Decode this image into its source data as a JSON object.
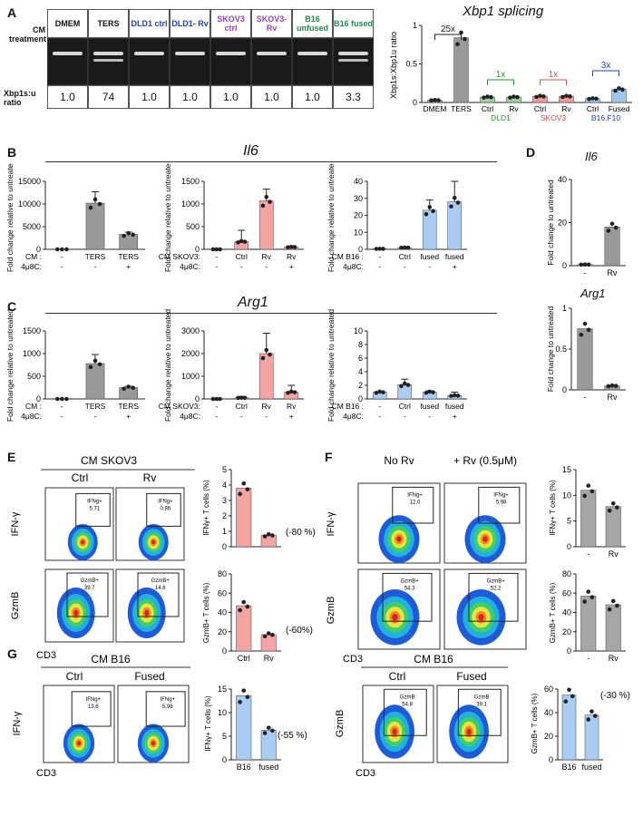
{
  "panelA": {
    "label": "A",
    "cm_label": "CM treatment",
    "ratio_label": "Xbp1s:u ratio",
    "lanes": [
      {
        "name": "DMEM",
        "color": "#111111",
        "ratio": "1.0"
      },
      {
        "name": "TERS",
        "color": "#111111",
        "ratio": "74"
      },
      {
        "name": "DLD1 ctrl",
        "color": "#1f3fbf",
        "ratio": "1.0"
      },
      {
        "name": "DLD1- Rv",
        "color": "#1f3fbf",
        "ratio": "1.0"
      },
      {
        "name": "SKOV3 ctrl",
        "color": "#9b3fbf",
        "ratio": "1.0"
      },
      {
        "name": "SKOV3- Rv",
        "color": "#9b3fbf",
        "ratio": "1.0"
      },
      {
        "name": "B16 unfused",
        "color": "#1a8f4a",
        "ratio": "1.0"
      },
      {
        "name": "B16 fused",
        "color": "#1a8f4a",
        "ratio": "3.3"
      }
    ],
    "chart_title": "Xbp1 splicing",
    "ylabel": "Xbp1s:Xbp1u ratio",
    "fold_labels": [
      "25x",
      "1x",
      "1x",
      "3x"
    ],
    "group_labels": [
      "DLD1",
      "SKOV3",
      "B16.F10"
    ]
  },
  "panelB": {
    "label": "B",
    "gene": "Il6"
  },
  "panelC": {
    "label": "C",
    "gene": "Arg1"
  },
  "panelD": {
    "label": "D",
    "gene1": "Il6",
    "gene2": "Arg1",
    "ylabel": "Fold change to untreated"
  },
  "panelE": {
    "label": "E",
    "title": "CM SKOV3",
    "col1": "Ctrl",
    "col2": "Rv",
    "gates": [
      "IFNg+ 5.71",
      "IFNg+ 0.86",
      "GzmB+ 39.7",
      "GzmB+ 14.6"
    ],
    "pct1": "(-80 %)",
    "pct2": "(-60%)",
    "ylab1": "IFNγ+ T cells (%)",
    "ylab2": "GzmB+ T cells (%)"
  },
  "panelF": {
    "label": "F",
    "col1": "No Rv",
    "col2": "+ Rv (0.5μM)",
    "gates": [
      "IFNg+ 12.0",
      "IFNg+ 5.98",
      "GzmB+ 54.3",
      "GzmB+ 52.2"
    ],
    "ylab1": "IFNγ+ T cells (%)",
    "ylab2": "GzmB+ T cells (%)"
  },
  "panelG": {
    "label": "G",
    "title": "CM B16",
    "col1": "Ctrl",
    "col2": "Fused",
    "gates": [
      "IFNg+ 13.6",
      "IFNg+ 5.98",
      "GzmB 54.8",
      "GzmB 39.1"
    ],
    "pct1": "(-55 %)",
    "pct2": "(-30 %)",
    "ylab1": "IFNγ+ T cells (%)",
    "ylab2": "GzmB+ T cells (%)"
  },
  "axes": {
    "ifng": "IFN-γ",
    "gzmb": "GzmB",
    "cd3": "CD3",
    "fold": "Fold change relative to untreated"
  },
  "chart_data": [
    {
      "type": "bar",
      "id": "A",
      "title": "Xbp1 splicing",
      "ylabel": "Xbp1s:Xbp1u ratio",
      "categories": [
        "DMEM",
        "TERS",
        "Ctrl",
        "Rv",
        "Ctrl",
        "Rv",
        "Ctrl",
        "Fused"
      ],
      "values": [
        0.03,
        0.84,
        0.07,
        0.07,
        0.08,
        0.08,
        0.05,
        0.17
      ],
      "ylim": [
        0,
        1.0
      ],
      "yticks": [
        0.0,
        0.5,
        1.0
      ],
      "colors": [
        "#999999",
        "#999999",
        "#9ad49a",
        "#9ad49a",
        "#f29a9a",
        "#f29a9a",
        "#9ec6ee",
        "#9ec6ee"
      ]
    },
    {
      "type": "bar",
      "id": "B1",
      "categories": [
        "-",
        "TERS",
        "TERS"
      ],
      "values": [
        0,
        10200,
        3300
      ],
      "err": [
        0,
        2500,
        500
      ],
      "ylim": [
        0,
        15000
      ],
      "yticks": [
        0,
        5000,
        10000,
        15000
      ],
      "color": "#999999",
      "row_cm": [
        "-",
        "TERS",
        "TERS"
      ],
      "row_4u8c": [
        "-",
        "-",
        "+"
      ],
      "cm_label": "CM :"
    },
    {
      "type": "bar",
      "id": "B2",
      "categories": [
        "-",
        "Ctrl",
        "Rv",
        "Rv"
      ],
      "values": [
        0,
        170,
        1070,
        50
      ],
      "err": [
        0,
        250,
        260,
        20
      ],
      "ylim": [
        0,
        1500
      ],
      "yticks": [
        0,
        500,
        1000,
        1500
      ],
      "color": "#f4a3a3",
      "row_cm": [
        "-",
        "Ctrl",
        "Rv",
        "Rv"
      ],
      "row_4u8c": [
        "-",
        "-",
        "-",
        "+"
      ],
      "cm_label": "CM SKOV3:"
    },
    {
      "type": "bar",
      "id": "B3",
      "categories": [
        "-",
        "Ctrl",
        "fused",
        "fused"
      ],
      "values": [
        0.3,
        1,
        23,
        28
      ],
      "err": [
        0,
        0.5,
        6,
        12
      ],
      "ylim": [
        0,
        40
      ],
      "yticks": [
        0,
        10,
        20,
        30,
        40
      ],
      "color": "#a9cdf2",
      "row_cm": [
        "-",
        "Ctrl",
        "fused",
        "fused"
      ],
      "row_4u8c": [
        "-",
        "-",
        "-",
        "+"
      ],
      "cm_label": "CM B16 :"
    },
    {
      "type": "bar",
      "id": "C1",
      "categories": [
        "-",
        "TERS",
        "TERS"
      ],
      "values": [
        0,
        780,
        250
      ],
      "err": [
        0,
        200,
        30
      ],
      "ylim": [
        0,
        1500
      ],
      "yticks": [
        0,
        500,
        1000,
        1500
      ],
      "color": "#999999",
      "row_cm": [
        "-",
        "TERS",
        "TERS"
      ],
      "row_4u8c": [
        "-",
        "-",
        "+"
      ],
      "cm_label": "CM :"
    },
    {
      "type": "bar",
      "id": "C2",
      "categories": [
        "-",
        "Ctrl",
        "Rv",
        "Rv"
      ],
      "values": [
        0,
        50,
        2000,
        300
      ],
      "err": [
        0,
        60,
        900,
        300
      ],
      "ylim": [
        0,
        3000
      ],
      "yticks": [
        0,
        1000,
        2000,
        3000
      ],
      "color": "#f4a3a3",
      "row_cm": [
        "-",
        "Ctrl",
        "Rv",
        "Rv"
      ],
      "row_4u8c": [
        "-",
        "-",
        "-",
        "+"
      ],
      "cm_label": "CM SKOV3:"
    },
    {
      "type": "bar",
      "id": "C3",
      "categories": [
        "-",
        "Ctrl",
        "fused",
        "fused"
      ],
      "values": [
        1,
        2.1,
        1,
        0.5
      ],
      "err": [
        0,
        0.8,
        0.2,
        0.5
      ],
      "ylim": [
        0,
        10
      ],
      "yticks": [
        0,
        2,
        4,
        6,
        8,
        10
      ],
      "color": "#a9cdf2",
      "row_cm": [
        "-",
        "Ctrl",
        "fused",
        "fused"
      ],
      "row_4u8c": [
        "-",
        "-",
        "-",
        "+"
      ],
      "cm_label": "CM B16 :"
    },
    {
      "type": "bar",
      "id": "D1",
      "title": "Il6",
      "categories": [
        "-",
        "Rv"
      ],
      "values": [
        0.5,
        18
      ],
      "ylim": [
        0,
        40
      ],
      "color": "#999999"
    },
    {
      "type": "bar",
      "id": "D2",
      "title": "Arg1",
      "categories": [
        "-",
        "Rv"
      ],
      "values": [
        0.75,
        0.05
      ],
      "ylim": [
        0,
        1
      ],
      "color": "#999999"
    },
    {
      "type": "bar",
      "id": "E1",
      "categories": [
        "Ctrl",
        "Rv"
      ],
      "values": [
        3.8,
        0.75
      ],
      "ylim": [
        0,
        5
      ],
      "yticks": [
        0,
        1,
        2,
        3,
        4,
        5
      ],
      "color": "#f4a3a3"
    },
    {
      "type": "bar",
      "id": "E2",
      "categories": [
        "Ctrl",
        "Rv"
      ],
      "values": [
        47,
        17
      ],
      "ylim": [
        0,
        80
      ],
      "yticks": [
        0,
        20,
        40,
        60,
        80
      ],
      "color": "#f4a3a3"
    },
    {
      "type": "bar",
      "id": "F1",
      "categories": [
        "-",
        "Rv"
      ],
      "values": [
        11,
        7.8
      ],
      "ylim": [
        0,
        15
      ],
      "yticks": [
        0,
        5,
        10,
        15
      ],
      "color": "#a6a6a6"
    },
    {
      "type": "bar",
      "id": "F2",
      "categories": [
        "-",
        "Rv"
      ],
      "values": [
        57,
        48
      ],
      "ylim": [
        0,
        80
      ],
      "yticks": [
        0,
        20,
        40,
        60,
        80
      ],
      "color": "#a6a6a6"
    },
    {
      "type": "bar",
      "id": "G1",
      "categories": [
        "B16",
        "fused"
      ],
      "values": [
        13.6,
        6.3
      ],
      "ylim": [
        0,
        15
      ],
      "yticks": [
        0,
        5,
        10,
        15
      ],
      "color": "#a9cdf2"
    },
    {
      "type": "bar",
      "id": "G2",
      "categories": [
        "B16",
        "fused"
      ],
      "values": [
        55,
        38
      ],
      "ylim": [
        0,
        60
      ],
      "yticks": [
        0,
        20,
        40,
        60
      ],
      "color": "#a9cdf2"
    }
  ]
}
